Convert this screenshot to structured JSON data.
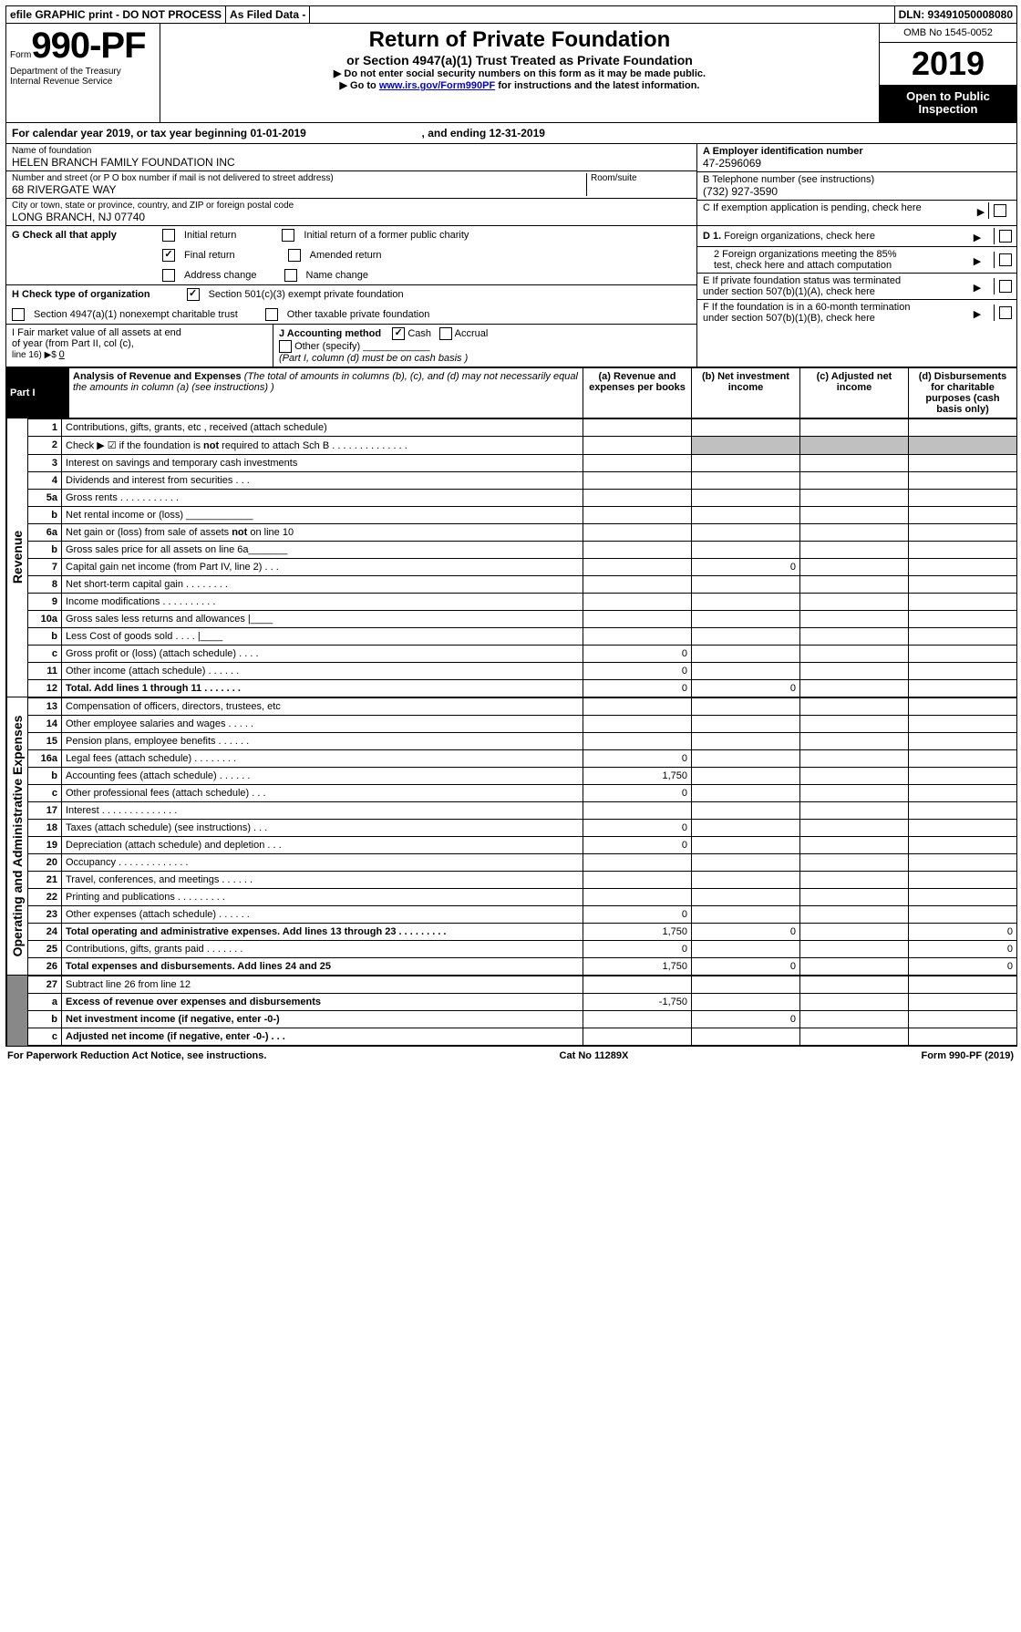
{
  "top": {
    "efile": "efile GRAPHIC print - DO NOT PROCESS",
    "asfiled": "As Filed Data -",
    "dln": "DLN: 93491050008080"
  },
  "header": {
    "form_prefix": "Form",
    "form_num": "990-PF",
    "dept": "Department of the Treasury",
    "irs": "Internal Revenue Service",
    "title": "Return of Private Foundation",
    "subtitle": "or Section 4947(a)(1) Trust Treated as Private Foundation",
    "instr1": "Do not enter social security numbers on this form as it may be made public.",
    "instr2_pre": "Go to ",
    "instr2_link": "www.irs.gov/Form990PF",
    "instr2_post": " for instructions and the latest information.",
    "omb": "OMB No 1545-0052",
    "year": "2019",
    "open": "Open to Public Inspection"
  },
  "calyear": {
    "pre": "For calendar year 2019, or tax year beginning ",
    "begin": "01-01-2019",
    "mid": ", and ending ",
    "end": "12-31-2019"
  },
  "info": {
    "name_lbl": "Name of foundation",
    "name_val": "HELEN BRANCH FAMILY FOUNDATION INC",
    "addr_lbl": "Number and street (or P O  box number if mail is not delivered to street address)",
    "addr_val": "68 RIVERGATE WAY",
    "room_lbl": "Room/suite",
    "city_lbl": "City or town, state or province, country, and ZIP or foreign postal code",
    "city_val": "LONG BRANCH, NJ  07740",
    "a_lbl": "A Employer identification number",
    "a_val": "47-2596069",
    "b_lbl": "B Telephone number (see instructions)",
    "b_val": "(732) 927-3590",
    "c_lbl": "C If exemption application is pending, check here",
    "d1": "D 1. Foreign organizations, check here",
    "d2_a": "2 Foreign organizations meeting the 85%",
    "d2_b": "test, check here and attach computation",
    "e_a": "E  If private foundation status was terminated",
    "e_b": "under section 507(b)(1)(A), check here",
    "f_a": "F  If the foundation is in a 60-month termination",
    "f_b": "under section 507(b)(1)(B), check here"
  },
  "g": {
    "lbl": "G Check all that apply",
    "initial": "Initial return",
    "initial_former": "Initial return of a former public charity",
    "final": "Final return",
    "amended": "Amended return",
    "addr": "Address change",
    "name": "Name change"
  },
  "h": {
    "lbl": "H Check type of organization",
    "s501": "Section 501(c)(3) exempt private foundation",
    "s4947": "Section 4947(a)(1) nonexempt charitable trust",
    "other_tax": "Other taxable private foundation"
  },
  "i": {
    "lbl1": "I Fair market value of all assets at end",
    "lbl2": "of year (from Part II, col  (c),",
    "lbl3_pre": "line 16) ▶$ ",
    "val": "0"
  },
  "j": {
    "lbl": "J Accounting method",
    "cash": "Cash",
    "accrual": "Accrual",
    "other": "Other (specify)",
    "note": "(Part I, column (d) must be on cash basis )"
  },
  "part1": {
    "badge": "Part I",
    "title": "Analysis of Revenue and Expenses ",
    "sub": "(The total of amounts in columns (b), (c), and (d) may not necessarily equal the amounts in column (a) (see instructions) )",
    "col_a": "(a) Revenue and expenses per books",
    "col_b": "(b) Net investment income",
    "col_c": "(c) Adjusted net income",
    "col_d": "(d) Disbursements for charitable purposes (cash basis only)"
  },
  "sides": {
    "rev": "Revenue",
    "exp": "Operating and Administrative Expenses"
  },
  "rows_rev": [
    {
      "n": "1",
      "d": "Contributions, gifts, grants, etc , received (attach schedule)"
    },
    {
      "n": "2",
      "d": "Check ▶ ☑ if the foundation is not required to attach Sch  B   .  .  .  .  .  .  .  .  .  .  .  .  .  .",
      "grey_bcd": true
    },
    {
      "n": "3",
      "d": "Interest on savings and temporary cash investments"
    },
    {
      "n": "4",
      "d": "Dividends and interest from securities   .  .  ."
    },
    {
      "n": "5a",
      "d": "Gross rents   .  .  .  .  .  .  .  .  .  .  ."
    },
    {
      "n": "b",
      "d": "Net rental income or (loss)  ____________"
    },
    {
      "n": "6a",
      "d": "Net gain or (loss) from sale of assets not on line 10"
    },
    {
      "n": "b",
      "d": "Gross sales price for all assets on line 6a_______"
    },
    {
      "n": "7",
      "d": "Capital gain net income (from Part IV, line 2)  .  .  .",
      "b": "0"
    },
    {
      "n": "8",
      "d": "Net short-term capital gain  .  .  .  .  .  .  .  ."
    },
    {
      "n": "9",
      "d": "Income modifications  .  .  .  .  .  .  .  .  .  ."
    },
    {
      "n": "10a",
      "d": "Gross sales less returns and allowances |____"
    },
    {
      "n": "b",
      "d": "Less  Cost of goods sold   .  .  .  . |____"
    },
    {
      "n": "c",
      "d": "Gross profit or (loss) (attach schedule)   .  .  .  .",
      "a": "0"
    },
    {
      "n": "11",
      "d": "Other income (attach schedule)   .  .  .  .  .  .",
      "a": "0"
    },
    {
      "n": "12",
      "d": "Total. Add lines 1 through 11   .  .  .  .  .  .  .",
      "a": "0",
      "b": "0",
      "bold": true
    }
  ],
  "rows_exp": [
    {
      "n": "13",
      "d": "Compensation of officers, directors, trustees, etc"
    },
    {
      "n": "14",
      "d": "Other employee salaries and wages   .  .  .  .  ."
    },
    {
      "n": "15",
      "d": "Pension plans, employee benefits  .  .  .  .  .  ."
    },
    {
      "n": "16a",
      "d": "Legal fees (attach schedule)  .  .  .  .  .  .  .  .",
      "a": "0"
    },
    {
      "n": "b",
      "d": "Accounting fees (attach schedule)  .  .  .  .  .  .",
      "a": "1,750"
    },
    {
      "n": "c",
      "d": "Other professional fees (attach schedule)   .  .  .",
      "a": "0"
    },
    {
      "n": "17",
      "d": "Interest  .  .  .  .  .  .  .  .  .  .  .  .  .  ."
    },
    {
      "n": "18",
      "d": "Taxes (attach schedule) (see instructions)   .  .  .",
      "a": "0"
    },
    {
      "n": "19",
      "d": "Depreciation (attach schedule) and depletion  .  .  .",
      "a": "0"
    },
    {
      "n": "20",
      "d": "Occupancy   .  .  .  .  .  .  .  .  .  .  .  .  ."
    },
    {
      "n": "21",
      "d": "Travel, conferences, and meetings  .  .  .  .  .  ."
    },
    {
      "n": "22",
      "d": "Printing and publications  .  .  .  .  .  .  .  .  ."
    },
    {
      "n": "23",
      "d": "Other expenses (attach schedule)  .  .  .  .  .  .",
      "a": "0"
    },
    {
      "n": "24",
      "d": "Total operating and administrative expenses. Add lines 13 through 23  .  .  .  .  .  .  .  .  .",
      "a": "1,750",
      "b": "0",
      "dd": "0",
      "bold": true
    },
    {
      "n": "25",
      "d": "Contributions, gifts, grants paid  .  .  .  .  .  .  .",
      "a": "0",
      "dd": "0"
    },
    {
      "n": "26",
      "d": "Total expenses and disbursements. Add lines 24 and 25",
      "a": "1,750",
      "b": "0",
      "dd": "0",
      "bold": true
    }
  ],
  "rows_sum": [
    {
      "n": "27",
      "d": "Subtract line 26 from line 12"
    },
    {
      "n": "a",
      "d": "Excess of revenue over expenses and disbursements",
      "a": "-1,750",
      "bold": true
    },
    {
      "n": "b",
      "d": "Net investment income (if negative, enter -0-)",
      "b": "0",
      "bold": true
    },
    {
      "n": "c",
      "d": "Adjusted net income (if negative, enter -0-)  .  .  .",
      "bold": true
    }
  ],
  "footer": {
    "left": "For Paperwork Reduction Act Notice, see instructions.",
    "mid": "Cat  No  11289X",
    "right": "Form 990-PF (2019)"
  }
}
